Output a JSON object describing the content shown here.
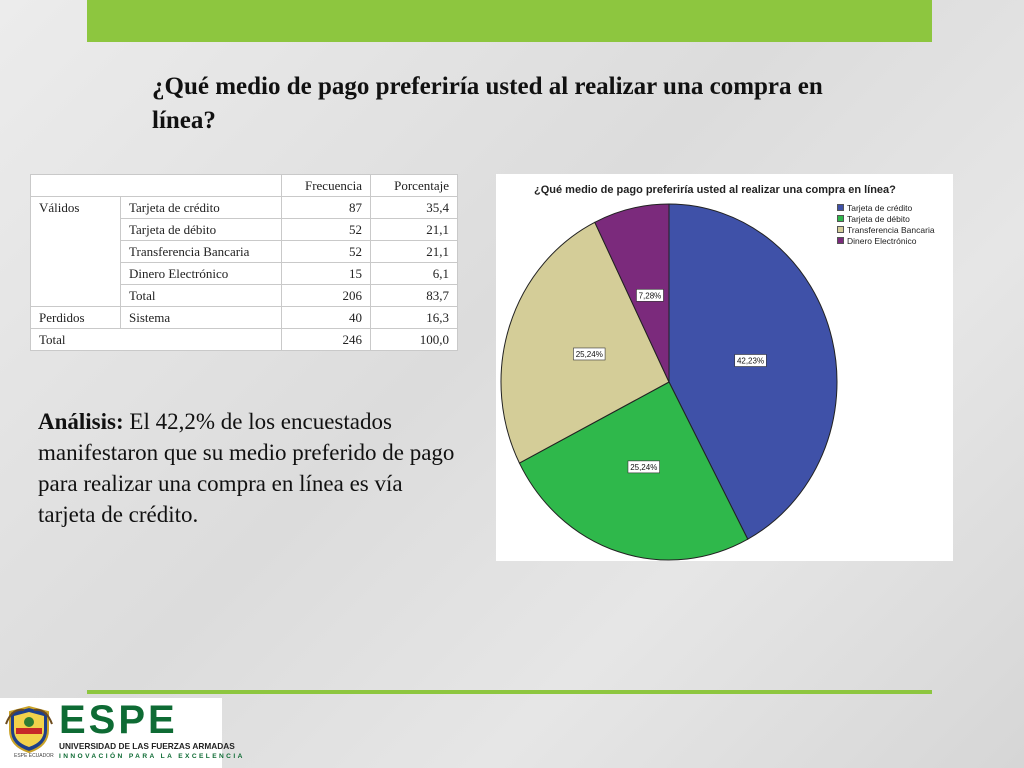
{
  "slide": {
    "title": "¿Qué medio de pago preferiría usted al realizar una compra en línea?",
    "analysis_label": "Análisis:",
    "analysis_text": " El 42,2% de los encuestados manifestaron que su medio preferido de pago para realizar una compra en línea es vía tarjeta de crédito."
  },
  "table": {
    "headers": [
      "Frecuencia",
      "Porcentaje"
    ],
    "group_validos": "Válidos",
    "group_perdidos": "Perdidos",
    "rows": [
      {
        "label": "Tarjeta de crédito",
        "frecuencia": "87",
        "porcentaje": "35,4"
      },
      {
        "label": "Tarjeta de débito",
        "frecuencia": "52",
        "porcentaje": "21,1"
      },
      {
        "label": "Transferencia Bancaria",
        "frecuencia": "52",
        "porcentaje": "21,1"
      },
      {
        "label": "Dinero Electrónico",
        "frecuencia": "15",
        "porcentaje": "6,1"
      },
      {
        "label": "Total",
        "frecuencia": "206",
        "porcentaje": "83,7"
      }
    ],
    "perdidos_row": {
      "label": "Sistema",
      "frecuencia": "40",
      "porcentaje": "16,3"
    },
    "total_row": {
      "label": "Total",
      "frecuencia": "246",
      "porcentaje": "100,0"
    }
  },
  "chart_data": {
    "type": "pie",
    "title": "¿Qué medio de pago preferiría usted al realizar una compra en línea?",
    "categories": [
      "Tarjeta de crédito",
      "Tarjeta de débito",
      "Transferencia Bancaria",
      "Dinero Electrónico"
    ],
    "values": [
      42.23,
      25.24,
      25.24,
      7.28
    ],
    "data_labels": [
      "42,23%",
      "25,24%",
      "25,24%",
      "7,28%"
    ],
    "colors": [
      "#3f51a8",
      "#2fb84b",
      "#d4cd98",
      "#7b2a7c"
    ],
    "legend": "top-right"
  },
  "brand": {
    "logo_text": "ESPE",
    "line1": "UNIVERSIDAD DE LAS FUERZAS ARMADAS",
    "line2": "INNOVACIÓN PARA LA EXCELENCIA",
    "crest_caption": "ESPE ECUADOR",
    "accent": "#8dc63f",
    "brand_green": "#0e6b34"
  }
}
